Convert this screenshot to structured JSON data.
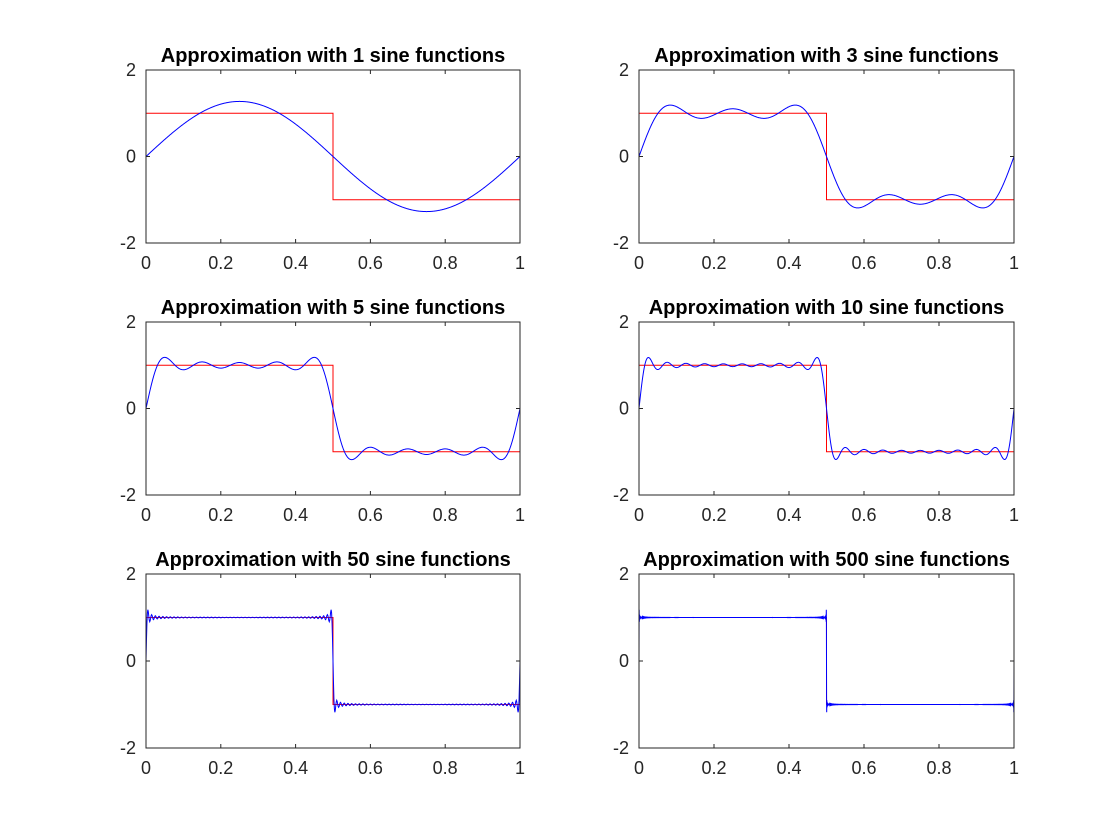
{
  "figure": {
    "background": "#ffffff",
    "square_color": "#ff0000",
    "approx_color": "#0000ff",
    "axis_color": "#262626"
  },
  "chart_data": [
    {
      "type": "line",
      "title": "Approximation with 1 sine functions",
      "n_terms": 1,
      "xlim": [
        0,
        1
      ],
      "ylim": [
        -2,
        2
      ],
      "xticks": [
        0,
        0.2,
        0.4,
        0.6,
        0.8,
        1
      ],
      "xtick_labels": [
        "0",
        "0.2",
        "0.4",
        "0.6",
        "0.8",
        "1"
      ],
      "yticks": [
        -2,
        0,
        2
      ],
      "ytick_labels": [
        "-2",
        "0",
        "2"
      ],
      "series": [
        {
          "color": "#ff0000",
          "x": [
            0,
            0,
            0.5,
            0.5,
            1,
            1
          ],
          "y": [
            0,
            1,
            1,
            -1,
            -1,
            1
          ]
        },
        {
          "color": "#0000ff",
          "function": "fourier_square",
          "terms": 1
        }
      ]
    },
    {
      "type": "line",
      "title": "Approximation with 3 sine functions",
      "n_terms": 3,
      "xlim": [
        0,
        1
      ],
      "ylim": [
        -2,
        2
      ],
      "xticks": [
        0,
        0.2,
        0.4,
        0.6,
        0.8,
        1
      ],
      "xtick_labels": [
        "0",
        "0.2",
        "0.4",
        "0.6",
        "0.8",
        "1"
      ],
      "yticks": [
        -2,
        0,
        2
      ],
      "ytick_labels": [
        "-2",
        "0",
        "2"
      ],
      "series": [
        {
          "color": "#ff0000",
          "x": [
            0,
            0,
            0.5,
            0.5,
            1,
            1
          ],
          "y": [
            0,
            1,
            1,
            -1,
            -1,
            1
          ]
        },
        {
          "color": "#0000ff",
          "function": "fourier_square",
          "terms": 3
        }
      ]
    },
    {
      "type": "line",
      "title": "Approximation with 5 sine functions",
      "n_terms": 5,
      "xlim": [
        0,
        1
      ],
      "ylim": [
        -2,
        2
      ],
      "xticks": [
        0,
        0.2,
        0.4,
        0.6,
        0.8,
        1
      ],
      "xtick_labels": [
        "0",
        "0.2",
        "0.4",
        "0.6",
        "0.8",
        "1"
      ],
      "yticks": [
        -2,
        0,
        2
      ],
      "ytick_labels": [
        "-2",
        "0",
        "2"
      ],
      "series": [
        {
          "color": "#ff0000",
          "x": [
            0,
            0,
            0.5,
            0.5,
            1,
            1
          ],
          "y": [
            0,
            1,
            1,
            -1,
            -1,
            1
          ]
        },
        {
          "color": "#0000ff",
          "function": "fourier_square",
          "terms": 5
        }
      ]
    },
    {
      "type": "line",
      "title": "Approximation with 10 sine functions",
      "n_terms": 10,
      "xlim": [
        0,
        1
      ],
      "ylim": [
        -2,
        2
      ],
      "xticks": [
        0,
        0.2,
        0.4,
        0.6,
        0.8,
        1
      ],
      "xtick_labels": [
        "0",
        "0.2",
        "0.4",
        "0.6",
        "0.8",
        "1"
      ],
      "yticks": [
        -2,
        0,
        2
      ],
      "ytick_labels": [
        "-2",
        "0",
        "2"
      ],
      "series": [
        {
          "color": "#ff0000",
          "x": [
            0,
            0,
            0.5,
            0.5,
            1,
            1
          ],
          "y": [
            0,
            1,
            1,
            -1,
            -1,
            1
          ]
        },
        {
          "color": "#0000ff",
          "function": "fourier_square",
          "terms": 10
        }
      ]
    },
    {
      "type": "line",
      "title": "Approximation with 50 sine functions",
      "n_terms": 50,
      "xlim": [
        0,
        1
      ],
      "ylim": [
        -2,
        2
      ],
      "xticks": [
        0,
        0.2,
        0.4,
        0.6,
        0.8,
        1
      ],
      "xtick_labels": [
        "0",
        "0.2",
        "0.4",
        "0.6",
        "0.8",
        "1"
      ],
      "yticks": [
        -2,
        0,
        2
      ],
      "ytick_labels": [
        "-2",
        "0",
        "2"
      ],
      "series": [
        {
          "color": "#ff0000",
          "x": [
            0,
            0,
            0.5,
            0.5,
            1,
            1
          ],
          "y": [
            0,
            1,
            1,
            -1,
            -1,
            1
          ]
        },
        {
          "color": "#0000ff",
          "function": "fourier_square",
          "terms": 50
        }
      ]
    },
    {
      "type": "line",
      "title": "Approximation with 500 sine functions",
      "n_terms": 500,
      "xlim": [
        0,
        1
      ],
      "ylim": [
        -2,
        2
      ],
      "xticks": [
        0,
        0.2,
        0.4,
        0.6,
        0.8,
        1
      ],
      "xtick_labels": [
        "0",
        "0.2",
        "0.4",
        "0.6",
        "0.8",
        "1"
      ],
      "yticks": [
        -2,
        0,
        2
      ],
      "ytick_labels": [
        "-2",
        "0",
        "2"
      ],
      "series": [
        {
          "color": "#ff0000",
          "x": [
            0,
            0,
            0.5,
            0.5,
            1,
            1
          ],
          "y": [
            0,
            1,
            1,
            -1,
            -1,
            1
          ]
        },
        {
          "color": "#0000ff",
          "function": "fourier_square",
          "terms": 500
        }
      ]
    }
  ]
}
